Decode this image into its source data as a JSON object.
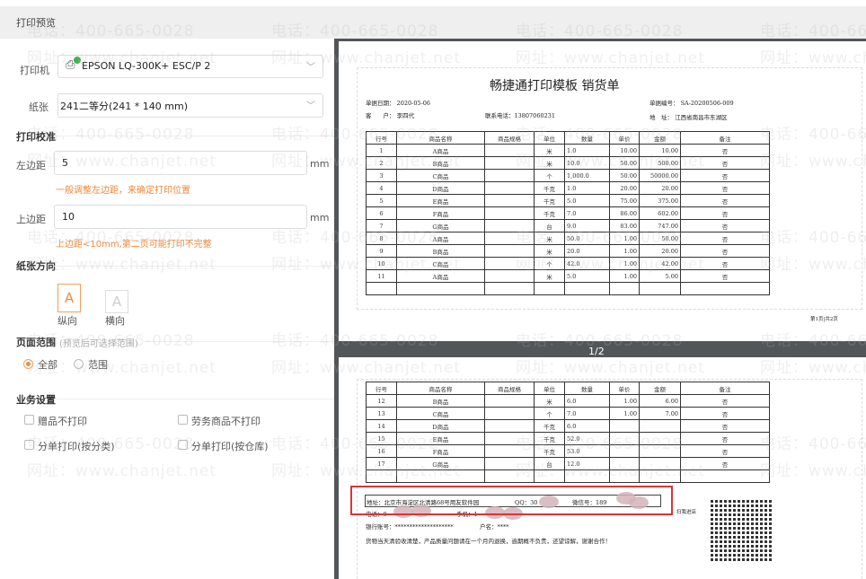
{
  "header": {
    "title": "打印预览"
  },
  "printer": {
    "label": "打印机",
    "value": "EPSON LQ-300K+ ESC/P 2"
  },
  "paper": {
    "label": "纸张",
    "value": "241二等分(241  * 140  mm)"
  },
  "calibration": {
    "title": "打印校准",
    "left_margin": {
      "label": "左边距",
      "value": "5",
      "unit": "mm",
      "hint": "一般调整左边距，来确定打印位置"
    },
    "top_margin": {
      "label": "上边距",
      "value": "10",
      "unit": "mm",
      "hint": "上边距<10mm,第二页可能打印不完整"
    }
  },
  "orientation": {
    "title": "纸张方向",
    "portrait": "纵向",
    "landscape": "横向",
    "glyph": "A",
    "selected": "portrait"
  },
  "range": {
    "title": "页面范围",
    "note": "(预览后可选择范围)",
    "all": "全部",
    "range": "范围",
    "selected": "all"
  },
  "business": {
    "title": "业务设置",
    "opts": [
      "赠品不打印",
      "劳务商品不打印",
      "分单打印(按分类)",
      "分单打印(按仓库)"
    ]
  },
  "watermark": {
    "phone": "电话：400-665-0028",
    "site": "网址：www.chanjet.net"
  },
  "colors": {
    "accent": "#f08a3c",
    "preview_bg": "#525659",
    "highlight": "#d9343a"
  },
  "doc": {
    "title": "畅捷通打印模板 销货单",
    "date_label": "单据日期：",
    "date": "2020-05-06",
    "customer_label": "客　　户：",
    "customer": "李四代",
    "contact_label": "联系电话：",
    "contact": "13807060231",
    "no_label": "单据编号：",
    "no": "SA-20200506-009",
    "addr_label": "地　址：",
    "addr": "江西省南昌市东湖区",
    "columns": [
      "行号",
      "商品名称",
      "商品规格",
      "单位",
      "数量",
      "单价",
      "金额",
      "备注"
    ],
    "page1_rows": [
      [
        "1",
        "A商品",
        "",
        "米",
        "1.0",
        "10.00",
        "10.00",
        "否"
      ],
      [
        "2",
        "B商品",
        "",
        "米",
        "10.0",
        "50.00",
        "500.00",
        "否"
      ],
      [
        "3",
        "C商品",
        "",
        "个",
        "1,000.0",
        "50.00",
        "50000.00",
        "否"
      ],
      [
        "4",
        "D商品",
        "",
        "千克",
        "1.0",
        "20.00",
        "20.00",
        "否"
      ],
      [
        "5",
        "E商品",
        "",
        "千克",
        "5.0",
        "75.00",
        "375.00",
        "否"
      ],
      [
        "6",
        "F商品",
        "",
        "千克",
        "7.0",
        "86.00",
        "602.00",
        "否"
      ],
      [
        "7",
        "G商品",
        "",
        "台",
        "9.0",
        "83.00",
        "747.00",
        "否"
      ],
      [
        "8",
        "A商品",
        "",
        "米",
        "50.0",
        "1.00",
        "50.00",
        "否"
      ],
      [
        "9",
        "B商品",
        "",
        "米",
        "20.0",
        "1.00",
        "20.00",
        "否"
      ],
      [
        "10",
        "C商品",
        "",
        "个",
        "42.0",
        "1.00",
        "42.00",
        "否"
      ],
      [
        "11",
        "A商品",
        "",
        "米",
        "5.0",
        "1.00",
        "5.00",
        "否"
      ]
    ],
    "page_footer": "第1页|共2页",
    "page2_rows": [
      [
        "12",
        "B商品",
        "",
        "米",
        "6.0",
        "1.00",
        "6.00",
        "否"
      ],
      [
        "13",
        "C商品",
        "",
        "个",
        "7.0",
        "1.00",
        "7.00",
        "否"
      ],
      [
        "14",
        "D商品",
        "",
        "千克",
        "6.0",
        "",
        "",
        "否"
      ],
      [
        "15",
        "E商品",
        "",
        "千克",
        "52.0",
        "",
        "",
        "否"
      ],
      [
        "16",
        "F商品",
        "",
        "千克",
        "53.0",
        "",
        "",
        "否"
      ],
      [
        "17",
        "G商品",
        "",
        "台",
        "12.0",
        "",
        "",
        "否"
      ]
    ],
    "footer_addr": "地址：北京市海淀区北清路68号用友软件园",
    "footer_qq": "QQ：30",
    "footer_wechat": "微信号：189",
    "footer_phone": "电话：0",
    "footer_mobile": "手机：1",
    "bank": "银行账号：********************",
    "account": "户名：****",
    "notice": "货物当天清验收清楚，产品质量问题请在一个月内退换，逾期概不负责，还望谅解，谢谢合作！",
    "qr_label": "扫我进店"
  },
  "pager": "1/2"
}
